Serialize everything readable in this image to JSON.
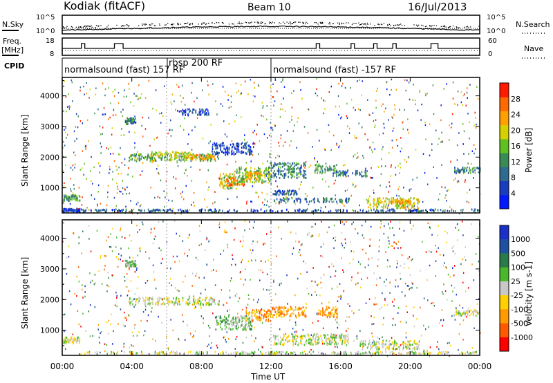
{
  "header": {
    "station": "Kodiak (fitACF)",
    "beam": "Beam 10",
    "date": "16/Jul/2013"
  },
  "noise_panel": {
    "left_label": "N.Sky",
    "right_label": "N.Search",
    "left_ticks": [
      "10^5",
      "10^0"
    ],
    "right_ticks": [
      "10^5",
      "10^0"
    ]
  },
  "freq_panel": {
    "left_label_top": "Freq.",
    "left_label_bottom": "[MHz]",
    "right_label": "Nave",
    "left_ticks": [
      "18",
      "8"
    ],
    "right_ticks": [
      "60",
      "0"
    ]
  },
  "cpid_panel": {
    "label": "CPID",
    "segments": [
      {
        "start_hour": 0,
        "end_hour": 12,
        "text": "normalsound (fast) 157 RF"
      },
      {
        "start_hour": 6,
        "end_hour": 6,
        "text": "rbsp 200 RF"
      },
      {
        "start_hour": 12,
        "end_hour": 24,
        "text": "normalsound (fast) -157 RF"
      }
    ]
  },
  "colors": {
    "power_scale": [
      "#0019ff",
      "#1a3dbf",
      "#2f6b8f",
      "#3a8a55",
      "#60c020",
      "#d7d000",
      "#ffa000",
      "#ff6a00",
      "#ff1a00"
    ],
    "velocity_scale": [
      "#1a30c8",
      "#2050a0",
      "#2a7a4a",
      "#4ab82a",
      "#c8c8c8",
      "#ffd000",
      "#ff9a00",
      "#ff5a00",
      "#ff0000"
    ]
  },
  "chart_data": [
    {
      "panel": "power",
      "type": "heatmap",
      "ylabel": "Slant Range [km]",
      "xlim_hours": [
        0,
        24
      ],
      "ylim_km": [
        180,
        4600
      ],
      "yticks": [
        "1000",
        "2000",
        "3000",
        "4000"
      ],
      "colorbar": {
        "label": "Power [dB]",
        "range": [
          0,
          32
        ],
        "tick_values": [
          4,
          8,
          12,
          16,
          20,
          24,
          28
        ],
        "tick_labels": [
          "4",
          "8",
          "12",
          "16",
          "20",
          "24",
          "28"
        ]
      },
      "blobs": [
        {
          "t0": 0.0,
          "t1": 1.0,
          "r0": 250,
          "r1": 350,
          "v": 5
        },
        {
          "t0": 0.0,
          "t1": 1.0,
          "r0": 600,
          "r1": 800,
          "v": 12
        },
        {
          "t0": 1.0,
          "t1": 24.0,
          "r0": 250,
          "r1": 330,
          "v": 6
        },
        {
          "t0": 3.6,
          "t1": 4.2,
          "r0": 3100,
          "r1": 3300,
          "v": 10
        },
        {
          "t0": 3.8,
          "t1": 9.0,
          "r0": 1900,
          "r1": 2150,
          "v": 14
        },
        {
          "t0": 5.0,
          "t1": 7.5,
          "r0": 2050,
          "r1": 2200,
          "v": 20
        },
        {
          "t0": 7.0,
          "t1": 8.8,
          "r0": 1950,
          "r1": 2100,
          "v": 24
        },
        {
          "t0": 8.5,
          "t1": 11.0,
          "r0": 2100,
          "r1": 2500,
          "v": 4
        },
        {
          "t0": 9.0,
          "t1": 10.0,
          "r0": 1000,
          "r1": 1500,
          "v": 18
        },
        {
          "t0": 9.3,
          "t1": 10.5,
          "r0": 1100,
          "r1": 1350,
          "v": 26
        },
        {
          "t0": 10.0,
          "t1": 12.0,
          "r0": 1200,
          "r1": 1700,
          "v": 16
        },
        {
          "t0": 10.5,
          "t1": 11.4,
          "r0": 1300,
          "r1": 1550,
          "v": 22
        },
        {
          "t0": 11.8,
          "t1": 14.0,
          "r0": 1350,
          "r1": 1850,
          "v": 10
        },
        {
          "t0": 12.0,
          "t1": 13.5,
          "r0": 800,
          "r1": 950,
          "v": 5
        },
        {
          "t0": 12.0,
          "t1": 16.5,
          "r0": 550,
          "r1": 700,
          "v": 9
        },
        {
          "t0": 14.5,
          "t1": 15.8,
          "r0": 1500,
          "r1": 1800,
          "v": 12
        },
        {
          "t0": 15.5,
          "t1": 17.5,
          "r0": 1400,
          "r1": 1600,
          "v": 9
        },
        {
          "t0": 17.5,
          "t1": 20.5,
          "r0": 350,
          "r1": 700,
          "v": 20
        },
        {
          "t0": 19.0,
          "t1": 20.0,
          "r0": 500,
          "r1": 650,
          "v": 24
        },
        {
          "t0": 22.5,
          "t1": 24.0,
          "r0": 1500,
          "r1": 1700,
          "v": 10
        },
        {
          "t0": 6.6,
          "t1": 8.4,
          "r0": 3400,
          "r1": 3600,
          "v": 5
        }
      ]
    },
    {
      "panel": "velocity",
      "type": "heatmap",
      "ylabel": "Slant Range [km]",
      "xlabel": "Time UT",
      "xlim_hours": [
        0,
        24
      ],
      "ylim_km": [
        180,
        4600
      ],
      "xticks": [
        "00:00",
        "04:00",
        "08:00",
        "12:00",
        "16:00",
        "20:00",
        "00:00"
      ],
      "yticks": [
        "1000",
        "2000",
        "3000",
        "4000"
      ],
      "colorbar": {
        "label": "Velocity [m s-1]",
        "tick_labels": [
          "1000",
          "500",
          "100",
          "25",
          "-25",
          "-100",
          "-500",
          "-1000"
        ]
      },
      "blobs": [
        {
          "t0": 0.0,
          "t1": 1.0,
          "r0": 600,
          "r1": 800,
          "v": 4
        },
        {
          "t0": 1.0,
          "t1": 24.0,
          "r0": 250,
          "r1": 330,
          "v": 4
        },
        {
          "t0": 3.6,
          "t1": 4.2,
          "r0": 3100,
          "r1": 3300,
          "v": 3
        },
        {
          "t0": 3.8,
          "t1": 9.0,
          "r0": 1850,
          "r1": 2100,
          "v": 4
        },
        {
          "t0": 8.8,
          "t1": 11.0,
          "r0": 1050,
          "r1": 1500,
          "v": 3
        },
        {
          "t0": 10.5,
          "t1": 12.0,
          "r0": 1300,
          "r1": 1700,
          "v": 6
        },
        {
          "t0": 12.0,
          "t1": 14.0,
          "r0": 1450,
          "r1": 1800,
          "v": 6
        },
        {
          "t0": 12.0,
          "t1": 16.5,
          "r0": 550,
          "r1": 900,
          "v": 4
        },
        {
          "t0": 14.6,
          "t1": 15.8,
          "r0": 1450,
          "r1": 1800,
          "v": 6
        },
        {
          "t0": 17.0,
          "t1": 20.5,
          "r0": 400,
          "r1": 700,
          "v": 4
        },
        {
          "t0": 22.5,
          "t1": 24.0,
          "r0": 1500,
          "r1": 1700,
          "v": 4
        }
      ]
    }
  ],
  "xaxis_label": "Time UT"
}
